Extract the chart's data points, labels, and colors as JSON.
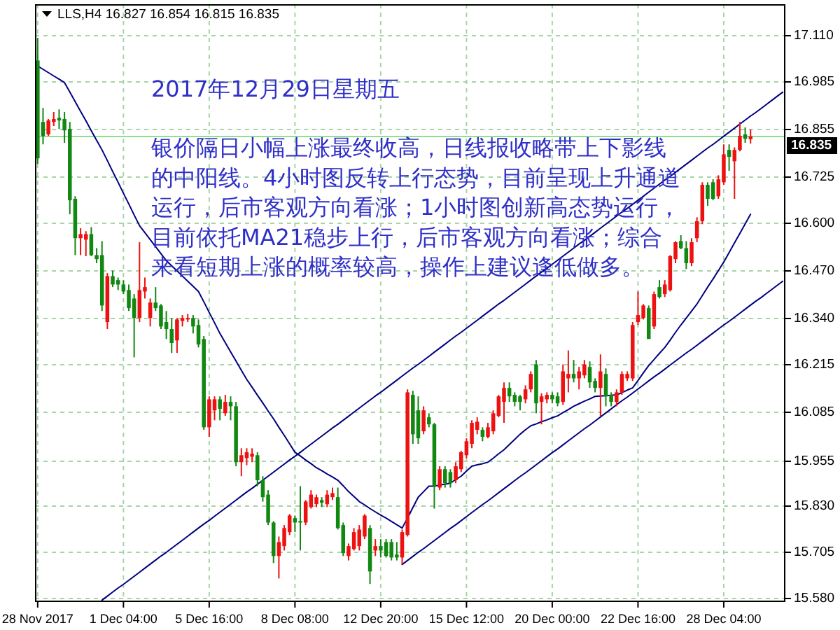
{
  "chart_data": {
    "type": "candlestick",
    "title": "LLS,H4 16.827 16.854 16.815 16.835",
    "annotations": [
      "2017年12月29日星期五",
      "银价隔日小幅上涨最终收高，日线报收略带上下影线的中阳线。4小时图反转上行态势，目前呈现上升通道运行，后市客观方向看涨；1小时图创新高态势运行，目前依托MA21稳步上行，后市客观方向看涨；综合来看短期上涨的概率较高，操作上建议逢低做多。"
    ],
    "categories": [
      "28 Nov 2017",
      null,
      null,
      null,
      null,
      null,
      null,
      null,
      null,
      null,
      null,
      null,
      null,
      null,
      null,
      null,
      "1 Dec 04:00",
      null,
      null,
      null,
      null,
      null,
      null,
      null,
      null,
      null,
      null,
      null,
      null,
      null,
      null,
      null,
      "5 Dec 16:00",
      null,
      null,
      null,
      null,
      null,
      null,
      null,
      null,
      null,
      null,
      null,
      null,
      null,
      null,
      null,
      "8 Dec 08:00",
      null,
      null,
      null,
      null,
      null,
      null,
      null,
      null,
      null,
      null,
      null,
      null,
      null,
      null,
      null,
      "12 Dec 20:00",
      null,
      null,
      null,
      null,
      null,
      null,
      null,
      null,
      null,
      null,
      null,
      null,
      null,
      null,
      null,
      "15 Dec 12:00",
      null,
      null,
      null,
      null,
      null,
      null,
      null,
      null,
      null,
      null,
      null,
      null,
      null,
      null,
      null,
      "20 Dec 00:00",
      null,
      null,
      null,
      null,
      null,
      null,
      null,
      null,
      null,
      null,
      null,
      null,
      null,
      null,
      null,
      "22 Dec 16:00",
      null,
      null,
      null,
      null,
      null,
      null,
      null,
      null,
      null,
      null,
      null,
      null,
      null,
      null,
      null,
      "28 Dec 04:00",
      null,
      null,
      null,
      null,
      null,
      null,
      null,
      null,
      null,
      null,
      null
    ],
    "ylim": [
      15.569,
      17.194
    ],
    "yticks": [
      {
        "value": 15.58,
        "label": "15.580"
      },
      {
        "value": 15.705,
        "label": "15.705"
      },
      {
        "value": 15.83,
        "label": "15.830"
      },
      {
        "value": 15.955,
        "label": "15.955"
      },
      {
        "value": 16.085,
        "label": "16.085"
      },
      {
        "value": 16.215,
        "label": "16.215"
      },
      {
        "value": 16.34,
        "label": "16.340"
      },
      {
        "value": 16.47,
        "label": "16.470"
      },
      {
        "value": 16.6,
        "label": "16.600"
      },
      {
        "value": 16.725,
        "label": "16.725"
      },
      {
        "value": 16.855,
        "label": "16.855"
      },
      {
        "value": 16.985,
        "label": "16.985"
      },
      {
        "value": 17.11,
        "label": "17.110"
      }
    ],
    "grid": true,
    "ohlc": [
      [
        17.041,
        17.102,
        16.76,
        16.775
      ],
      [
        16.874,
        16.912,
        16.813,
        16.836
      ],
      [
        16.84,
        16.882,
        16.836,
        16.878
      ],
      [
        16.874,
        16.901,
        16.863,
        16.882
      ],
      [
        16.885,
        16.908,
        16.855,
        16.878
      ],
      [
        16.882,
        16.901,
        16.817,
        16.851
      ],
      [
        16.855,
        16.874,
        16.623,
        16.661
      ],
      [
        16.665,
        16.672,
        16.512,
        16.558
      ],
      [
        16.558,
        16.585,
        16.512,
        16.569
      ],
      [
        16.554,
        16.577,
        16.509,
        16.569
      ],
      [
        16.569,
        16.588,
        16.509,
        16.512
      ],
      [
        16.512,
        16.531,
        16.49,
        16.501
      ],
      [
        16.512,
        16.55,
        16.36,
        16.375
      ],
      [
        16.33,
        16.463,
        16.311,
        16.455
      ],
      [
        16.455,
        16.47,
        16.425,
        16.432
      ],
      [
        16.444,
        16.451,
        16.417,
        16.432
      ],
      [
        16.432,
        16.444,
        16.406,
        16.413
      ],
      [
        16.417,
        16.432,
        16.36,
        16.368
      ],
      [
        16.394,
        16.406,
        16.234,
        16.341
      ],
      [
        16.341,
        16.547,
        16.33,
        16.417
      ],
      [
        16.413,
        16.451,
        16.394,
        16.425
      ],
      [
        16.341,
        16.394,
        16.318,
        16.383
      ],
      [
        16.383,
        16.425,
        16.36,
        16.368
      ],
      [
        16.375,
        16.379,
        16.311,
        16.318
      ],
      [
        16.33,
        16.36,
        16.284,
        16.311
      ],
      [
        16.311,
        16.341,
        16.246,
        16.273
      ],
      [
        16.28,
        16.341,
        16.246,
        16.337
      ],
      [
        16.333,
        16.349,
        16.318,
        16.341
      ],
      [
        16.337,
        16.352,
        16.33,
        16.341
      ],
      [
        16.341,
        16.349,
        16.299,
        16.318
      ],
      [
        16.322,
        16.337,
        16.261,
        16.269
      ],
      [
        16.284,
        16.292,
        16.037,
        16.044
      ],
      [
        16.044,
        16.128,
        16.018,
        16.12
      ],
      [
        16.09,
        16.128,
        16.063,
        16.12
      ],
      [
        16.12,
        16.128,
        16.063,
        16.094
      ],
      [
        16.082,
        16.132,
        16.075,
        16.113
      ],
      [
        16.113,
        16.128,
        16.063,
        16.101
      ],
      [
        16.101,
        16.113,
        15.938,
        15.949
      ],
      [
        15.949,
        15.987,
        15.911,
        15.968
      ],
      [
        15.96,
        15.987,
        15.941,
        15.976
      ],
      [
        15.964,
        15.987,
        15.949,
        15.972
      ],
      [
        15.968,
        15.976,
        15.884,
        15.9
      ],
      [
        15.9,
        15.911,
        15.842,
        15.854
      ],
      [
        15.861,
        15.873,
        15.778,
        15.785
      ],
      [
        15.785,
        15.789,
        15.675,
        15.694
      ],
      [
        15.694,
        15.747,
        15.633,
        15.732
      ],
      [
        15.721,
        15.778,
        15.709,
        15.77
      ],
      [
        15.759,
        15.808,
        15.751,
        15.804
      ],
      [
        15.797,
        15.804,
        15.759,
        15.785
      ],
      [
        15.789,
        15.884,
        15.709,
        15.785
      ],
      [
        15.785,
        15.846,
        15.778,
        15.842
      ],
      [
        15.827,
        15.873,
        15.823,
        15.861
      ],
      [
        15.835,
        15.861,
        15.827,
        15.854
      ],
      [
        15.846,
        15.854,
        15.827,
        15.839
      ],
      [
        15.835,
        15.873,
        15.827,
        15.861
      ],
      [
        15.854,
        15.88,
        15.846,
        15.865
      ],
      [
        15.854,
        15.88,
        15.766,
        15.77
      ],
      [
        15.778,
        15.785,
        15.694,
        15.702
      ],
      [
        15.694,
        15.728,
        15.682,
        15.721
      ],
      [
        15.713,
        15.77,
        15.709,
        15.759
      ],
      [
        15.721,
        15.778,
        15.709,
        15.766
      ],
      [
        15.747,
        15.808,
        15.74,
        15.804
      ],
      [
        15.77,
        15.778,
        15.618,
        15.652
      ],
      [
        15.709,
        15.74,
        15.694,
        15.721
      ],
      [
        15.721,
        15.74,
        15.69,
        15.709
      ],
      [
        15.732,
        15.74,
        15.69,
        15.694
      ],
      [
        15.732,
        15.74,
        15.682,
        15.69
      ],
      [
        15.698,
        15.732,
        15.682,
        15.69
      ],
      [
        15.69,
        15.766,
        15.671,
        15.759
      ],
      [
        15.751,
        16.147,
        15.747,
        16.139
      ],
      [
        16.132,
        16.143,
        15.999,
        16.025
      ],
      [
        16.09,
        16.128,
        15.999,
        16.014
      ],
      [
        16.033,
        16.101,
        16.025,
        16.09
      ],
      [
        16.071,
        16.082,
        16.044,
        16.052
      ],
      [
        16.052,
        16.056,
        15.823,
        15.884
      ],
      [
        15.88,
        15.938,
        15.873,
        15.93
      ],
      [
        15.93,
        15.938,
        15.88,
        15.892
      ],
      [
        15.922,
        15.93,
        15.88,
        15.892
      ],
      [
        15.9,
        15.949,
        15.892,
        15.938
      ],
      [
        15.93,
        15.98,
        15.922,
        15.976
      ],
      [
        15.968,
        16.014,
        15.96,
        16.006
      ],
      [
        15.999,
        16.063,
        15.987,
        16.056
      ],
      [
        16.037,
        16.071,
        16.025,
        16.059
      ],
      [
        16.037,
        16.044,
        16.006,
        16.018
      ],
      [
        16.018,
        16.056,
        16.014,
        16.044
      ],
      [
        16.033,
        16.09,
        16.025,
        16.082
      ],
      [
        16.075,
        16.132,
        16.071,
        16.128
      ],
      [
        16.113,
        16.166,
        16.056,
        16.151
      ],
      [
        16.151,
        16.166,
        16.113,
        16.128
      ],
      [
        16.132,
        16.139,
        16.101,
        16.113
      ],
      [
        16.128,
        16.132,
        16.09,
        16.113
      ],
      [
        16.12,
        16.158,
        16.109,
        16.147
      ],
      [
        16.147,
        16.196,
        16.139,
        16.189
      ],
      [
        16.215,
        16.227,
        16.082,
        16.109
      ],
      [
        16.113,
        16.136,
        16.052,
        16.128
      ],
      [
        16.12,
        16.139,
        16.109,
        16.132
      ],
      [
        16.132,
        16.139,
        16.109,
        16.12
      ],
      [
        16.128,
        16.139,
        16.101,
        16.109
      ],
      [
        16.113,
        16.215,
        16.105,
        16.196
      ],
      [
        16.177,
        16.253,
        16.139,
        16.189
      ],
      [
        16.189,
        16.227,
        16.166,
        16.177
      ],
      [
        16.177,
        16.208,
        16.147,
        16.196
      ],
      [
        16.185,
        16.227,
        16.177,
        16.215
      ],
      [
        16.208,
        16.223,
        16.151,
        16.166
      ],
      [
        16.17,
        16.177,
        16.139,
        16.151
      ],
      [
        16.151,
        16.242,
        16.075,
        16.196
      ],
      [
        16.189,
        16.204,
        16.101,
        16.128
      ],
      [
        16.132,
        16.139,
        16.101,
        16.113
      ],
      [
        16.113,
        16.147,
        16.101,
        16.139
      ],
      [
        16.139,
        16.196,
        16.132,
        16.189
      ],
      [
        16.177,
        16.196,
        16.17,
        16.189
      ],
      [
        16.177,
        16.33,
        16.17,
        16.322
      ],
      [
        16.33,
        16.413,
        16.322,
        16.349
      ],
      [
        16.341,
        16.379,
        16.337,
        16.375
      ],
      [
        16.368,
        16.375,
        16.284,
        16.284
      ],
      [
        16.318,
        16.413,
        16.311,
        16.406
      ],
      [
        16.425,
        16.444,
        16.394,
        16.398
      ],
      [
        16.406,
        16.444,
        16.398,
        16.432
      ],
      [
        16.417,
        16.512,
        16.413,
        16.509
      ],
      [
        16.501,
        16.55,
        16.49,
        16.547
      ],
      [
        16.55,
        16.566,
        16.528,
        16.531
      ],
      [
        16.531,
        16.55,
        16.474,
        16.49
      ],
      [
        16.49,
        16.558,
        16.482,
        16.547
      ],
      [
        16.558,
        16.615,
        16.547,
        16.604
      ],
      [
        16.604,
        16.71,
        16.596,
        16.703
      ],
      [
        16.703,
        16.71,
        16.646,
        16.665
      ],
      [
        16.71,
        16.718,
        16.661,
        16.665
      ],
      [
        16.672,
        16.729,
        16.665,
        16.718
      ],
      [
        16.71,
        16.813,
        16.703,
        16.786
      ],
      [
        16.798,
        16.813,
        16.741,
        16.779
      ],
      [
        16.767,
        16.805,
        16.665,
        16.798
      ],
      [
        16.798,
        16.874,
        16.794,
        16.836
      ],
      [
        16.84,
        16.859,
        16.817,
        16.828
      ],
      [
        16.827,
        16.854,
        16.815,
        16.835
      ],
      null,
      null,
      null,
      null,
      null,
      null
    ],
    "colors": [
      "#118811",
      "#118811",
      "#ee1111",
      "#ee1111",
      "#118811",
      "#118811",
      "#118811",
      "#118811",
      "#ee1111",
      "#ee1111",
      "#118811",
      "#118811",
      "#118811",
      "#ee1111",
      "#118811",
      "#118811",
      "#118811",
      "#118811",
      "#118811",
      "#ee1111",
      "#ee1111",
      "#ee1111",
      "#118811",
      "#118811",
      "#118811",
      "#118811",
      "#ee1111",
      "#ee1111",
      "#ee1111",
      "#118811",
      "#118811",
      "#118811",
      "#ee1111",
      "#ee1111",
      "#118811",
      "#ee1111",
      "#118811",
      "#118811",
      "#ee1111",
      "#ee1111",
      "#ee1111",
      "#118811",
      "#118811",
      "#118811",
      "#118811",
      "#ee1111",
      "#ee1111",
      "#ee1111",
      "#118811",
      "#118811",
      "#ee1111",
      "#ee1111",
      "#ee1111",
      "#118811",
      "#ee1111",
      "#ee1111",
      "#118811",
      "#118811",
      "#ee1111",
      "#ee1111",
      "#ee1111",
      "#ee1111",
      "#118811",
      "#ee1111",
      "#118811",
      "#118811",
      "#118811",
      "#118811",
      "#ee1111",
      "#ee1111",
      "#118811",
      "#118811",
      "#ee1111",
      "#118811",
      "#118811",
      "#ee1111",
      "#118811",
      "#118811",
      "#ee1111",
      "#ee1111",
      "#ee1111",
      "#ee1111",
      "#ee1111",
      "#118811",
      "#ee1111",
      "#ee1111",
      "#ee1111",
      "#ee1111",
      "#118811",
      "#118811",
      "#118811",
      "#ee1111",
      "#ee1111",
      "#118811",
      "#ee1111",
      "#ee1111",
      "#118811",
      "#118811",
      "#ee1111",
      "#ee1111",
      "#118811",
      "#ee1111",
      "#ee1111",
      "#118811",
      "#118811",
      "#ee1111",
      "#118811",
      "#118811",
      "#ee1111",
      "#ee1111",
      "#ee1111",
      "#ee1111",
      "#ee1111",
      "#ee1111",
      "#118811",
      "#ee1111",
      "#118811",
      "#ee1111",
      "#ee1111",
      "#ee1111",
      "#118811",
      "#118811",
      "#ee1111",
      "#ee1111",
      "#ee1111",
      "#118811",
      "#118811",
      "#ee1111",
      "#ee1111",
      "#118811",
      "#ee1111",
      "#ee1111",
      "#118811",
      "#ee1111",
      null,
      null,
      null,
      null,
      null,
      null
    ],
    "series": [
      {
        "type": "line",
        "color": "#000080",
        "values": [
          17.026,
          17.017,
          17.008,
          16.999,
          16.99,
          16.981,
          16.955,
          16.929,
          16.903,
          16.877,
          16.85,
          16.824,
          16.798,
          16.769,
          16.739,
          16.71,
          16.68,
          16.651,
          16.621,
          16.592,
          16.573,
          16.554,
          16.535,
          16.516,
          16.497,
          16.483,
          16.469,
          16.455,
          16.441,
          16.427,
          16.413,
          16.385,
          16.356,
          16.328,
          16.299,
          16.274,
          16.249,
          16.224,
          16.199,
          16.174,
          16.153,
          16.131,
          16.11,
          16.088,
          16.067,
          16.044,
          16.022,
          15.999,
          15.976,
          15.966,
          15.955,
          15.945,
          15.934,
          15.926,
          15.917,
          15.909,
          15.9,
          15.885,
          15.869,
          15.856,
          15.842,
          15.833,
          15.823,
          15.814,
          15.805,
          15.797,
          15.788,
          15.779,
          15.77,
          15.797,
          15.826,
          15.854,
          15.869,
          15.884,
          15.884,
          15.887,
          15.889,
          15.892,
          15.902,
          15.911,
          15.925,
          15.938,
          15.942,
          15.945,
          15.949,
          15.96,
          15.972,
          15.983,
          15.997,
          16.011,
          16.025,
          16.037,
          16.048,
          16.053,
          16.059,
          16.064,
          16.07,
          16.075,
          16.084,
          16.092,
          16.101,
          16.108,
          16.115,
          16.121,
          16.128,
          16.129,
          16.13,
          16.131,
          16.132,
          16.138,
          16.145,
          16.151,
          16.171,
          16.192,
          16.212,
          16.228,
          16.245,
          16.261,
          16.281,
          16.302,
          16.322,
          16.341,
          16.36,
          16.379,
          16.402,
          16.425,
          16.447,
          16.47,
          16.493,
          16.519,
          16.545,
          16.571,
          16.597,
          16.623,
          null,
          null,
          null,
          null,
          null,
          null
        ]
      },
      {
        "type": "line",
        "color": "#000080",
        "values": [
          null,
          null,
          null,
          null,
          null,
          null,
          null,
          null,
          null,
          null,
          null,
          null,
          15.574,
          15.585,
          15.596,
          15.607,
          15.617,
          15.628,
          15.639,
          15.65,
          15.661,
          15.672,
          15.683,
          15.694,
          15.704,
          15.715,
          15.726,
          15.737,
          15.748,
          15.759,
          15.77,
          15.781,
          15.791,
          15.802,
          15.813,
          15.824,
          15.835,
          15.846,
          15.857,
          15.868,
          15.878,
          15.889,
          15.9,
          15.911,
          15.922,
          15.933,
          15.944,
          15.955,
          15.965,
          15.976,
          15.987,
          15.998,
          16.009,
          16.02,
          16.031,
          16.042,
          16.052,
          16.063,
          16.074,
          16.085,
          16.096,
          16.107,
          16.118,
          16.129,
          16.139,
          16.15,
          16.161,
          16.172,
          16.183,
          16.194,
          16.205,
          16.215,
          16.226,
          16.237,
          16.248,
          16.259,
          16.27,
          16.281,
          16.292,
          16.302,
          16.313,
          16.324,
          16.335,
          16.346,
          16.357,
          16.368,
          16.379,
          16.389,
          16.4,
          16.411,
          16.422,
          16.433,
          16.444,
          16.455,
          16.466,
          16.476,
          16.487,
          16.498,
          16.509,
          16.52,
          16.531,
          16.542,
          16.552,
          16.563,
          16.574,
          16.585,
          16.596,
          16.607,
          16.618,
          16.629,
          16.639,
          16.65,
          16.661,
          16.672,
          16.683,
          16.694,
          16.705,
          16.716,
          16.726,
          16.737,
          16.748,
          16.759,
          16.77,
          16.781,
          16.792,
          16.803,
          16.813,
          16.824,
          16.835,
          16.846,
          16.857,
          16.868,
          16.879,
          16.89,
          16.9,
          16.911,
          16.922,
          16.933,
          16.944,
          16.955
        ]
      },
      {
        "type": "line",
        "color": "#000080",
        "values": [
          null,
          null,
          null,
          null,
          null,
          null,
          null,
          null,
          null,
          null,
          null,
          null,
          null,
          null,
          null,
          null,
          null,
          null,
          null,
          null,
          null,
          null,
          null,
          null,
          null,
          null,
          null,
          null,
          null,
          null,
          null,
          null,
          null,
          null,
          null,
          null,
          null,
          null,
          null,
          null,
          null,
          null,
          null,
          null,
          null,
          null,
          null,
          null,
          null,
          null,
          null,
          null,
          null,
          null,
          null,
          null,
          null,
          null,
          null,
          null,
          null,
          null,
          null,
          null,
          null,
          null,
          null,
          null,
          15.671,
          15.682,
          15.693,
          15.704,
          15.714,
          15.725,
          15.736,
          15.747,
          15.758,
          15.769,
          15.779,
          15.79,
          15.801,
          15.812,
          15.823,
          15.834,
          15.844,
          15.855,
          15.866,
          15.877,
          15.888,
          15.899,
          15.91,
          15.92,
          15.931,
          15.942,
          15.953,
          15.964,
          15.975,
          15.985,
          15.996,
          16.007,
          16.018,
          16.029,
          16.04,
          16.05,
          16.061,
          16.072,
          16.083,
          16.094,
          16.105,
          16.116,
          16.126,
          16.137,
          16.148,
          16.159,
          16.17,
          16.181,
          16.191,
          16.202,
          16.213,
          16.224,
          16.235,
          16.246,
          16.256,
          16.267,
          16.278,
          16.289,
          16.3,
          16.311,
          16.322,
          16.332,
          16.343,
          16.354,
          16.365,
          16.376,
          16.387,
          16.397,
          16.408,
          16.419,
          16.43,
          16.441
        ]
      }
    ],
    "ref_lines": [
      {
        "axis": "y",
        "value": 16.835,
        "label": "16.835",
        "color": "#8ee08e"
      }
    ]
  }
}
